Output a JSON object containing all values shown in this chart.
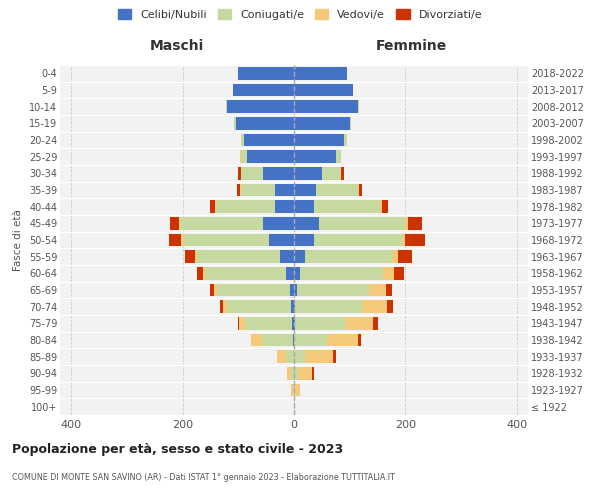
{
  "age_groups": [
    "100+",
    "95-99",
    "90-94",
    "85-89",
    "80-84",
    "75-79",
    "70-74",
    "65-69",
    "60-64",
    "55-59",
    "50-54",
    "45-49",
    "40-44",
    "35-39",
    "30-34",
    "25-29",
    "20-24",
    "15-19",
    "10-14",
    "5-9",
    "0-4"
  ],
  "birth_years": [
    "≤ 1922",
    "1923-1927",
    "1928-1932",
    "1933-1937",
    "1938-1942",
    "1943-1947",
    "1948-1952",
    "1953-1957",
    "1958-1962",
    "1963-1967",
    "1968-1972",
    "1973-1977",
    "1978-1982",
    "1983-1987",
    "1988-1992",
    "1993-1997",
    "1998-2002",
    "2003-2007",
    "2008-2012",
    "2013-2017",
    "2018-2022"
  ],
  "maschi": {
    "celibi": [
      0,
      0,
      0,
      0,
      2,
      3,
      5,
      8,
      15,
      25,
      45,
      55,
      35,
      35,
      55,
      85,
      90,
      105,
      120,
      110,
      100
    ],
    "coniugati": [
      0,
      2,
      5,
      15,
      55,
      85,
      115,
      130,
      145,
      150,
      155,
      150,
      105,
      60,
      40,
      10,
      5,
      2,
      2,
      0,
      0
    ],
    "vedovi": [
      0,
      3,
      8,
      15,
      20,
      10,
      8,
      5,
      3,
      2,
      2,
      2,
      2,
      2,
      0,
      2,
      0,
      0,
      0,
      0,
      0
    ],
    "divorziati": [
      0,
      0,
      0,
      0,
      0,
      2,
      5,
      8,
      12,
      18,
      22,
      15,
      8,
      5,
      5,
      0,
      0,
      0,
      0,
      0,
      0
    ]
  },
  "femmine": {
    "nubili": [
      0,
      0,
      0,
      0,
      0,
      2,
      2,
      5,
      10,
      20,
      35,
      45,
      35,
      40,
      50,
      75,
      90,
      100,
      115,
      105,
      95
    ],
    "coniugate": [
      0,
      2,
      8,
      20,
      60,
      90,
      120,
      130,
      150,
      155,
      160,
      155,
      120,
      75,
      35,
      10,
      5,
      2,
      2,
      0,
      0
    ],
    "vedove": [
      1,
      8,
      25,
      50,
      55,
      50,
      45,
      30,
      20,
      12,
      5,
      5,
      3,
      2,
      0,
      0,
      0,
      0,
      0,
      0,
      0
    ],
    "divorziate": [
      0,
      0,
      2,
      5,
      5,
      8,
      10,
      10,
      18,
      25,
      35,
      25,
      10,
      5,
      5,
      0,
      0,
      0,
      0,
      0,
      0
    ]
  },
  "colors": {
    "celibi_nubili": "#4472C4",
    "coniugati_e": "#C6D9A0",
    "vedovi_e": "#F5C97A",
    "divorziati_e": "#CC3300"
  },
  "xlim": 420,
  "title": "Popolazione per età, sesso e stato civile - 2023",
  "subtitle": "COMUNE DI MONTE SAN SAVINO (AR) - Dati ISTAT 1° gennaio 2023 - Elaborazione TUTTITALIA.IT",
  "ylabel_left": "Fasce di età",
  "xlabel_maschi": "Maschi",
  "xlabel_femmine": "Femmine",
  "legend_labels": [
    "Celibi/Nubili",
    "Coniugati/e",
    "Vedovi/e",
    "Divorziati/e"
  ],
  "bg_color": "#FFFFFF",
  "plot_bg": "#F2F2F2"
}
